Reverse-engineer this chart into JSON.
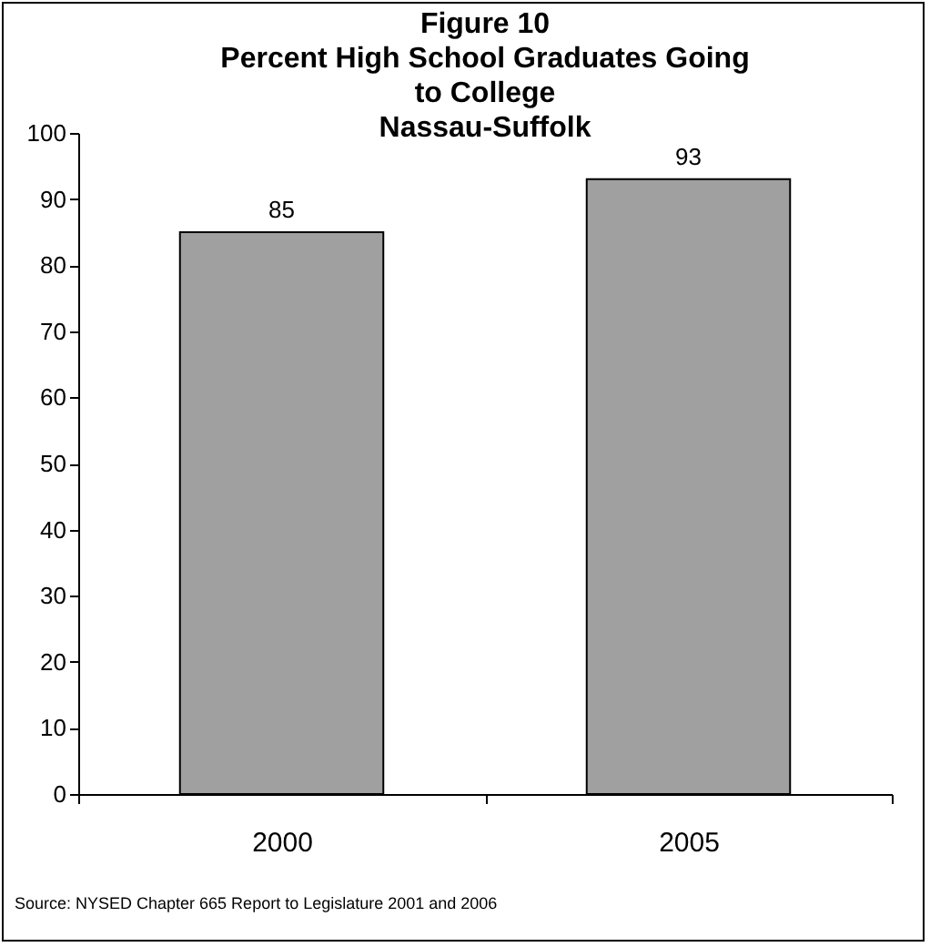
{
  "chart_data": {
    "type": "bar",
    "title": "Figure 10\nPercent High School Graduates Going\nto College\nNassau-Suffolk",
    "categories": [
      "2000",
      "2005"
    ],
    "values": [
      85,
      93
    ],
    "color": "#a0a0a0",
    "ylim": [
      0,
      100
    ],
    "yticks": [
      0,
      10,
      20,
      30,
      40,
      50,
      60,
      70,
      80,
      90,
      100
    ],
    "grid": false,
    "data_labels": true,
    "annotations": [
      "Source: NYSED Chapter 665 Report to Legislature 2001 and 2006"
    ]
  }
}
